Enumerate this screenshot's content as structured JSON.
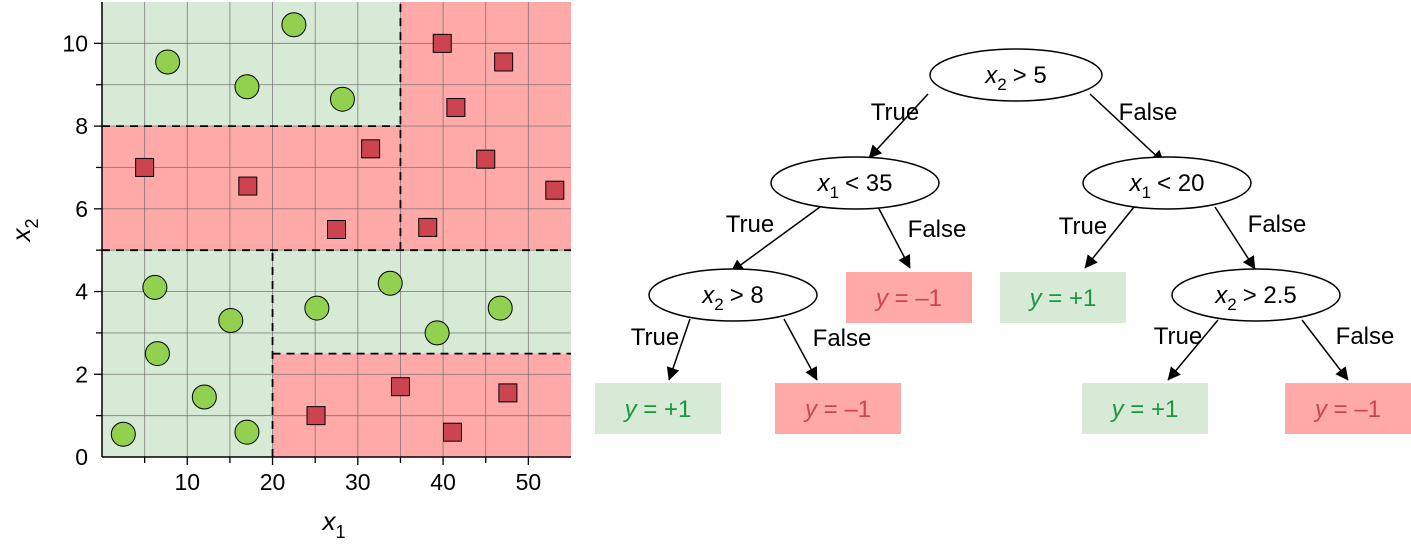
{
  "colors": {
    "positive_region": "#d6ead5",
    "negative_region": "#ffa9a9",
    "circle_fill": "#92d050",
    "square_fill": "#cd4451",
    "positive_text": "#1a9641",
    "negative_text": "#cd4451"
  },
  "chart_data": {
    "type": "scatter",
    "xlabel": "x",
    "xlabel_sub": "1",
    "ylabel": "x",
    "ylabel_sub": "2",
    "xlim": [
      0,
      55
    ],
    "ylim": [
      0,
      11
    ],
    "x_ticks": [
      10,
      20,
      30,
      40,
      50
    ],
    "y_ticks": [
      0,
      2,
      4,
      6,
      8,
      10
    ],
    "grid": true,
    "regions": [
      {
        "x": [
          0,
          35
        ],
        "y": [
          8,
          11
        ],
        "class": "positive"
      },
      {
        "x": [
          35,
          55
        ],
        "y": [
          5,
          11
        ],
        "class": "negative"
      },
      {
        "x": [
          0,
          35
        ],
        "y": [
          5,
          8
        ],
        "class": "negative"
      },
      {
        "x": [
          0,
          20
        ],
        "y": [
          0,
          5
        ],
        "class": "positive"
      },
      {
        "x": [
          20,
          55
        ],
        "y": [
          2.5,
          5
        ],
        "class": "positive"
      },
      {
        "x": [
          20,
          55
        ],
        "y": [
          0,
          2.5
        ],
        "class": "negative"
      }
    ],
    "boundaries": [
      {
        "x": [
          0,
          55
        ],
        "y": [
          5,
          5
        ]
      },
      {
        "x": [
          0,
          35
        ],
        "y": [
          8,
          8
        ]
      },
      {
        "x": [
          35,
          35
        ],
        "y": [
          5,
          11
        ]
      },
      {
        "x": [
          20,
          20
        ],
        "y": [
          0,
          5
        ]
      },
      {
        "x": [
          20,
          55
        ],
        "y": [
          2.5,
          2.5
        ]
      }
    ],
    "series": [
      {
        "marker": "circle",
        "points": [
          [
            22.5,
            10.45
          ],
          [
            7.7,
            9.55
          ],
          [
            17.0,
            8.95
          ],
          [
            28.2,
            8.65
          ],
          [
            6.2,
            4.1
          ],
          [
            15.1,
            3.3
          ],
          [
            6.5,
            2.5
          ],
          [
            12.0,
            1.45
          ],
          [
            2.5,
            0.55
          ],
          [
            17.0,
            0.6
          ],
          [
            25.2,
            3.6
          ],
          [
            33.8,
            4.2
          ],
          [
            39.3,
            3.0
          ],
          [
            46.7,
            3.6
          ]
        ]
      },
      {
        "marker": "square",
        "points": [
          [
            39.9,
            10.0
          ],
          [
            47.1,
            9.55
          ],
          [
            41.5,
            8.45
          ],
          [
            45.0,
            7.2
          ],
          [
            53.1,
            6.45
          ],
          [
            5.0,
            7.0
          ],
          [
            17.1,
            6.55
          ],
          [
            31.5,
            7.45
          ],
          [
            27.5,
            5.5
          ],
          [
            38.2,
            5.55
          ],
          [
            25.1,
            1.0
          ],
          [
            35.0,
            1.7
          ],
          [
            47.6,
            1.55
          ],
          [
            41.1,
            0.6
          ]
        ]
      }
    ]
  },
  "tree": {
    "nodes": [
      {
        "id": "root",
        "var": "x",
        "sub": "2",
        "op": "> 5"
      },
      {
        "id": "n1",
        "var": "x",
        "sub": "1",
        "op": "< 35"
      },
      {
        "id": "n2",
        "var": "x",
        "sub": "1",
        "op": "< 20"
      },
      {
        "id": "n3",
        "var": "x",
        "sub": "2",
        "op": "> 8"
      },
      {
        "id": "n4",
        "var": "x",
        "sub": "2",
        "op": "> 2.5"
      }
    ],
    "leaves": [
      {
        "id": "leaf-n1-false",
        "var": "y",
        "rest": " = –1",
        "class": "negative"
      },
      {
        "id": "leaf-n2-true",
        "var": "y",
        "rest": " = +1",
        "class": "positive"
      },
      {
        "id": "leaf-n3-true",
        "var": "y",
        "rest": " = +1",
        "class": "positive"
      },
      {
        "id": "leaf-n3-false",
        "var": "y",
        "rest": " = –1",
        "class": "negative"
      },
      {
        "id": "leaf-n4-true",
        "var": "y",
        "rest": " = +1",
        "class": "positive"
      },
      {
        "id": "leaf-n4-false",
        "var": "y",
        "rest": " = –1",
        "class": "negative"
      }
    ],
    "edges": [
      {
        "id": "root-n1",
        "label": "True"
      },
      {
        "id": "root-n2",
        "label": "False"
      },
      {
        "id": "n1-n3",
        "label": "True"
      },
      {
        "id": "n1-leaf",
        "label": "False"
      },
      {
        "id": "n2-leaf",
        "label": "True"
      },
      {
        "id": "n2-n4",
        "label": "False"
      },
      {
        "id": "n3-leaf-true",
        "label": "True"
      },
      {
        "id": "n3-leaf-false",
        "label": "False"
      },
      {
        "id": "n4-leaf-true",
        "label": "True"
      },
      {
        "id": "n4-leaf-false",
        "label": "False"
      }
    ]
  }
}
